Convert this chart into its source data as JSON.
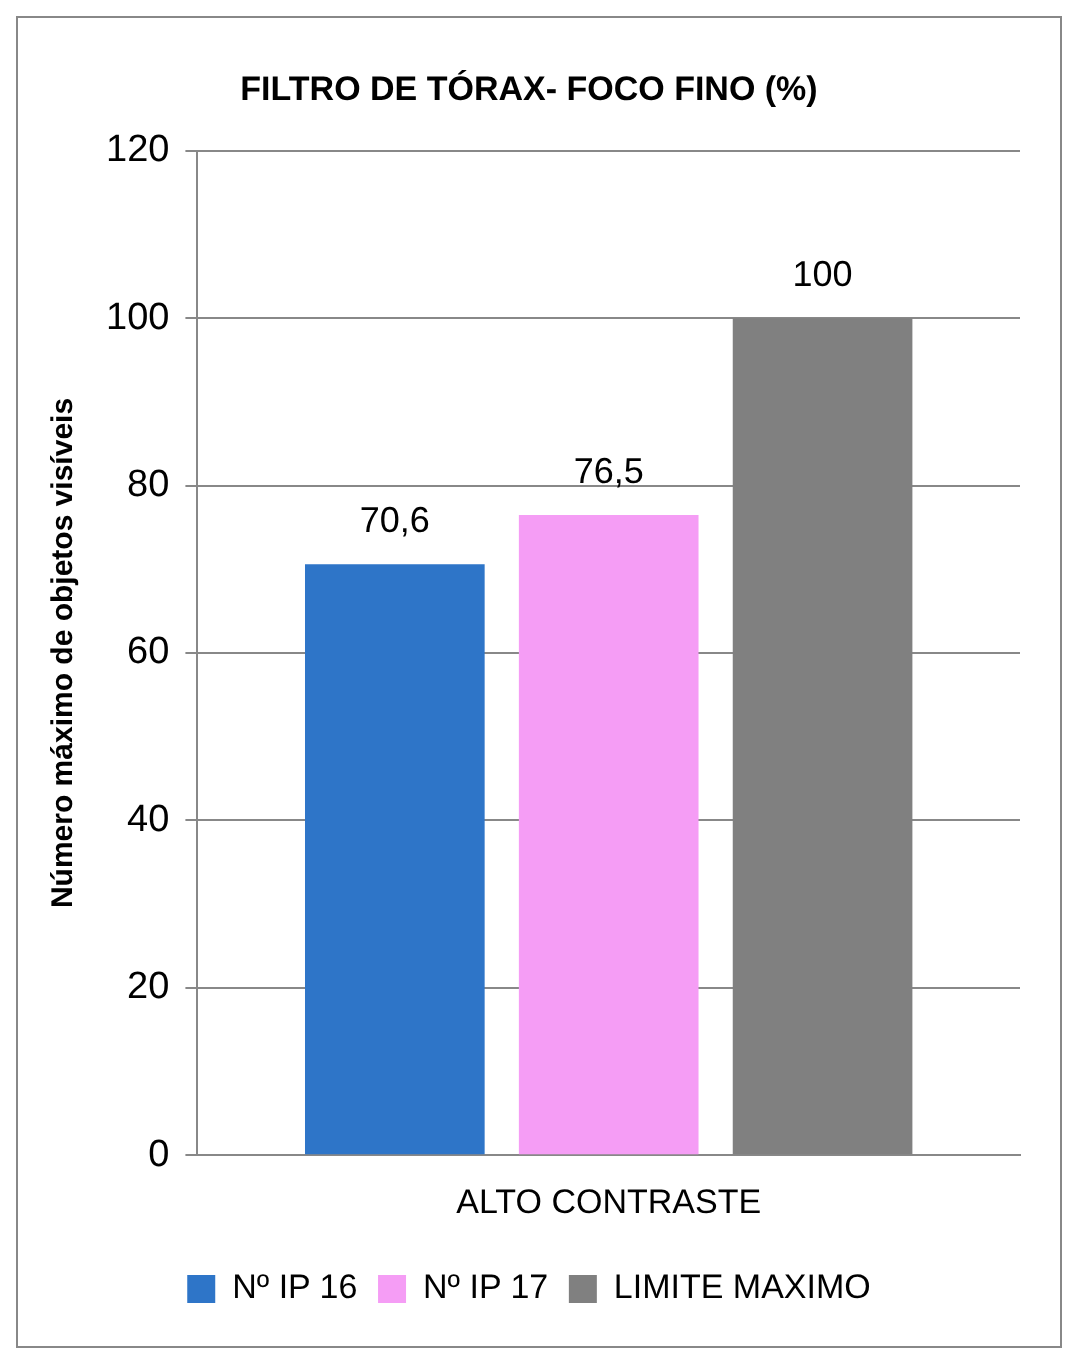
{
  "chart_data": {
    "type": "bar",
    "title": "FILTRO DE TÓRAX- FOCO FINO (%)",
    "ylabel": "Número máximo de objetos visíveis",
    "categories": [
      "ALTO CONTRASTE"
    ],
    "series": [
      {
        "name": "Nº IP 16",
        "color": "#2e75c8",
        "values": [
          70.6
        ],
        "value_labels": [
          "70,6"
        ]
      },
      {
        "name": "Nº IP 17",
        "color": "#f59df5",
        "values": [
          76.5
        ],
        "value_labels": [
          "76,5"
        ]
      },
      {
        "name": "LIMITE MAXIMO",
        "color": "#808080",
        "values": [
          100
        ],
        "value_labels": [
          "100"
        ]
      }
    ],
    "ylim": [
      0,
      120
    ],
    "yticks": [
      0,
      20,
      40,
      60,
      80,
      100,
      120
    ],
    "grid": "y",
    "legend": "bottom"
  }
}
